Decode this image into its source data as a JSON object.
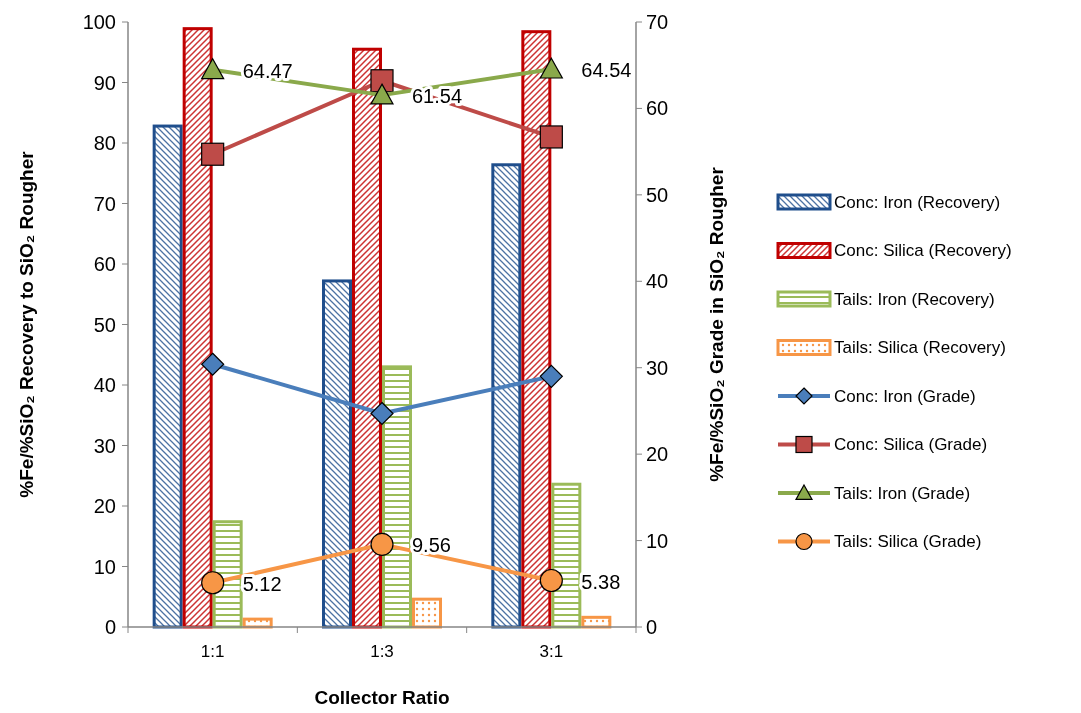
{
  "chart_data": {
    "type": "bar",
    "xlabel": "Collector Ratio",
    "ylabel": "%Fe/%SiO₂ Recovery to SiO₂ Rougher",
    "y2label": "%Fe/%SiO₂ Grade in SiO₂ Rougher",
    "categories": [
      "1:1",
      "1:3",
      "3:1"
    ],
    "ylim": [
      0,
      100
    ],
    "yticks": [
      0,
      10,
      20,
      30,
      40,
      50,
      60,
      70,
      80,
      90,
      100
    ],
    "y2lim": [
      0,
      70
    ],
    "y2ticks": [
      0,
      10,
      20,
      30,
      40,
      50,
      60,
      70
    ],
    "legend": "right",
    "grid": false,
    "series": [
      {
        "name": "Conc: Iron (Recovery)",
        "color": "#1f4e8c",
        "values": [
          82.8,
          57.2,
          76.4
        ]
      },
      {
        "name": "Conc: Silica (Recovery)",
        "color": "#c00000",
        "values": [
          98.9,
          95.5,
          98.4
        ]
      },
      {
        "name": "Tails: Iron (Recovery)",
        "color": "#9bbb59",
        "values": [
          17.4,
          43.0,
          23.6
        ]
      },
      {
        "name": "Tails: Silica (Recovery)",
        "color": "#f79646",
        "values": [
          1.3,
          4.6,
          1.6
        ]
      },
      {
        "name": "Conc: Iron (Grade)",
        "type": "line",
        "axis": "y2",
        "marker": "diamond",
        "color": "#4a7ebb",
        "values": [
          30.4,
          24.7,
          29.0
        ]
      },
      {
        "name": "Conc: Silica (Grade)",
        "type": "line",
        "axis": "y2",
        "marker": "square",
        "color": "#be4b48",
        "values": [
          54.7,
          63.2,
          56.7
        ]
      },
      {
        "name": "Tails: Iron (Grade)",
        "type": "line",
        "axis": "y2",
        "marker": "triangle",
        "color": "#8aa94b",
        "values": [
          64.47,
          61.54,
          64.54
        ],
        "value_labels": [
          "64.47",
          "61.54",
          "64.54"
        ]
      },
      {
        "name": "Tails: Silica (Grade)",
        "type": "line",
        "axis": "y2",
        "marker": "circle",
        "color": "#f79646",
        "values": [
          5.12,
          9.56,
          5.38
        ],
        "value_labels": [
          "5.12",
          "9.56",
          "5.38"
        ]
      }
    ]
  }
}
